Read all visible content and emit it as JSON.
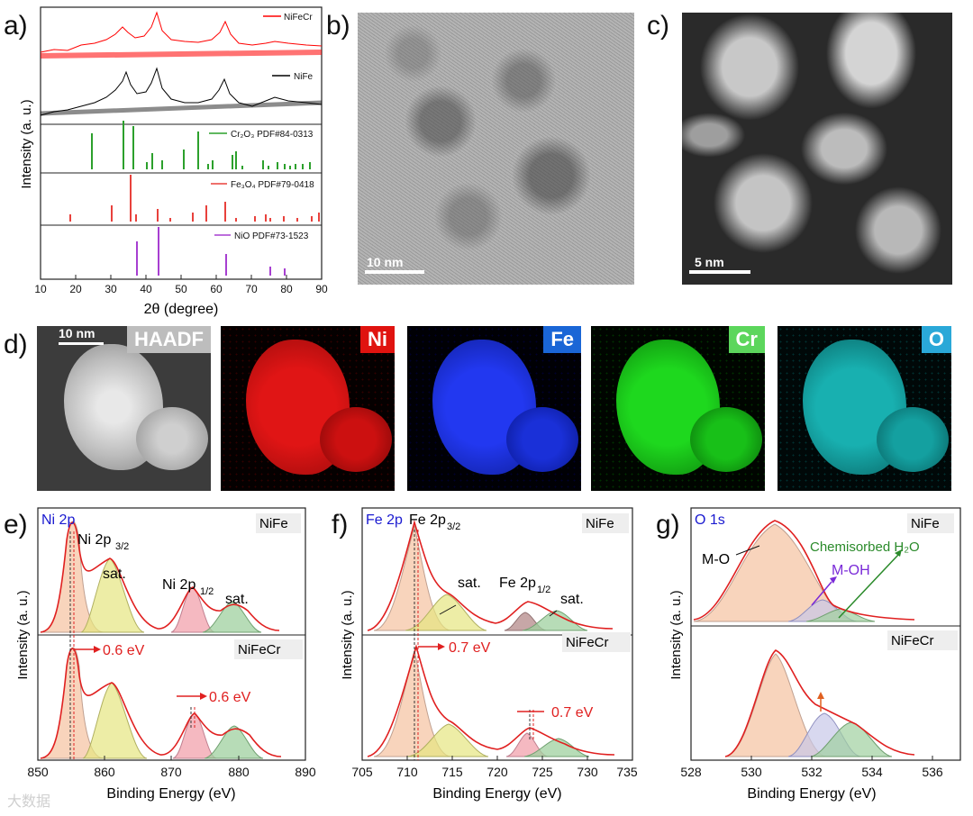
{
  "panels": {
    "a": {
      "label": "a)",
      "ylabel": "Intensity (a. u.)",
      "xlabel": "2θ (degree)",
      "ticks": [
        "10",
        "20",
        "30",
        "40",
        "50",
        "60",
        "70",
        "80",
        "90"
      ],
      "legend": {
        "nifecr": "NiFeCr",
        "nife": "NiFe",
        "cr2o3": "Cr₂O₃ PDF#84-0313",
        "fe3o4": "Fe₃O₄ PDF#79-0418",
        "nio": "NiO PDF#73-1523"
      },
      "colors": {
        "nifecr": "#ff0000",
        "nife": "#000000",
        "cr2o3": "#2ca02c",
        "fe3o4": "#e8413c",
        "nio": "#a73fd1"
      }
    },
    "b": {
      "label": "b)",
      "scale": "10 nm"
    },
    "c": {
      "label": "c)",
      "scale": "5 nm"
    },
    "d": {
      "label": "d)",
      "scale": "10 nm",
      "maps": [
        {
          "name": "HAADF",
          "color": "#bdbdbd",
          "bg": "#3a3a3a",
          "fill": "#d8d8d8"
        },
        {
          "name": "Ni",
          "color": "#e0130f",
          "bg": "#0a0000",
          "fill": "#d41010"
        },
        {
          "name": "Fe",
          "color": "#1a66d6",
          "bg": "#00000a",
          "fill": "#1830d8"
        },
        {
          "name": "Cr",
          "color": "#5cd65c",
          "bg": "#000500",
          "fill": "#18d018"
        },
        {
          "name": "O",
          "color": "#2aa8d8",
          "bg": "#000808",
          "fill": "#13a6a6"
        }
      ]
    },
    "e": {
      "label": "e)",
      "title": "Ni 2p",
      "top": "NiFe",
      "bottom": "NiFeCr",
      "peak32": "Ni 2p",
      "peak32_sub": "3/2",
      "peak12": "Ni 2p",
      "peak12_sub": "1/2",
      "sat1": "sat.",
      "sat2": "sat.",
      "shift1": "0.6 eV",
      "shift2": "0.6 eV",
      "ylabel": "Intensity (a. u.)",
      "xlabel": "Binding Energy (eV)",
      "ticks": [
        "850",
        "860",
        "870",
        "880",
        "890"
      ]
    },
    "f": {
      "label": "f)",
      "title": "Fe 2p",
      "top": "NiFe",
      "bottom": "NiFeCr",
      "peak32": "Fe 2p",
      "peak32_sub": "3/2",
      "peak12": "Fe 2p",
      "peak12_sub": "1/2",
      "sat1": "sat.",
      "sat2": "sat.",
      "shift1": "0.7 eV",
      "shift2": "0.7 eV",
      "ylabel": "Intensity (a. u.)",
      "xlabel": "Binding Energy (eV)",
      "ticks": [
        "705",
        "710",
        "715",
        "720",
        "725",
        "730",
        "735"
      ]
    },
    "g": {
      "label": "g)",
      "title": "O 1s",
      "top": "NiFe",
      "bottom": "NiFeCr",
      "mo": "M-O",
      "moh": "M-OH",
      "h2o": "Chemisorbed H₂O",
      "ylabel": "Intensity (a. u.)",
      "xlabel": "Binding Energy (eV)",
      "ticks": [
        "528",
        "530",
        "532",
        "534",
        "536"
      ]
    }
  },
  "watermark": "大数据"
}
